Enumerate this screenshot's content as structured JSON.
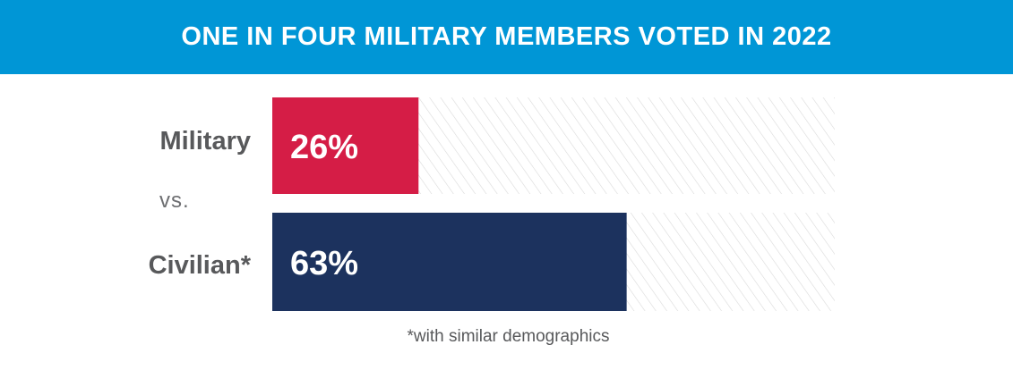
{
  "header": {
    "title": "ONE IN FOUR MILITARY MEMBERS VOTED IN 2022",
    "background_color": "#0096d6"
  },
  "separator": "vs.",
  "footnote": "*with similar demographics",
  "colors": {
    "military": "#d51d46",
    "civilian": "#1c325e",
    "hatch": "#d9d9d9",
    "label": "#58595b"
  },
  "chart_data": {
    "type": "bar",
    "orientation": "horizontal",
    "categories": [
      "Military",
      "Civilian*"
    ],
    "values": [
      26,
      63
    ],
    "value_labels": [
      "26%",
      "63%"
    ],
    "xlim": [
      0,
      100
    ],
    "title": "ONE IN FOUR MILITARY MEMBERS VOTED IN 2022",
    "xlabel": "",
    "ylabel": "",
    "grid": false,
    "legend": "none"
  }
}
